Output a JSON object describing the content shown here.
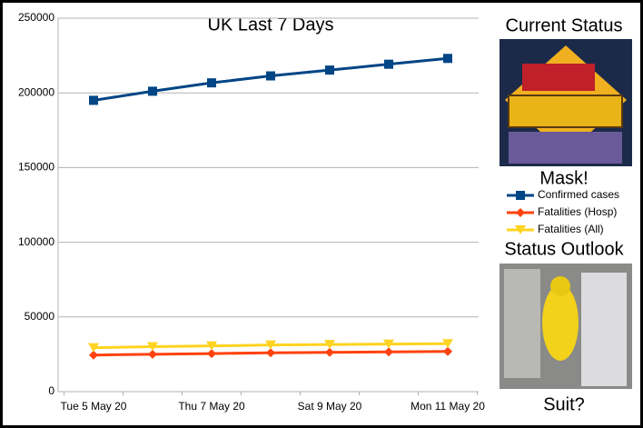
{
  "chart_data": {
    "type": "line",
    "title": "UK Last 7 Days",
    "categories": [
      "Tue 5 May 20",
      null,
      "Thu 7 May 20",
      null,
      "Sat 9 May 20",
      null,
      "Mon 11 May 20"
    ],
    "series": [
      {
        "name": "Confirmed cases",
        "color": "#004586",
        "marker": "square",
        "values": [
          194990,
          201101,
          206715,
          211364,
          215260,
          219183,
          223060
        ]
      },
      {
        "name": "Fatalities (Hosp)",
        "color": "#ff420e",
        "marker": "diamond",
        "values": [
          24500,
          25000,
          25500,
          26000,
          26300,
          26600,
          26900
        ]
      },
      {
        "name": "Fatalities (All)",
        "color": "#ffd320",
        "marker": "triangle-down",
        "values": [
          29427,
          30076,
          30615,
          31241,
          31587,
          31855,
          32065
        ]
      }
    ],
    "ylim": [
      0,
      250000
    ],
    "yticks": [
      0,
      50000,
      100000,
      150000,
      200000,
      250000
    ],
    "grid": true
  },
  "sidebar": {
    "current_status": "Current Status",
    "caption_1": "Mask!",
    "outlook": "Status Outlook",
    "caption_2": "Suit?"
  }
}
